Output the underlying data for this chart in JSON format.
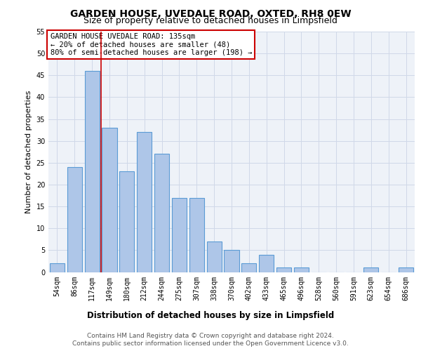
{
  "title": "GARDEN HOUSE, UVEDALE ROAD, OXTED, RH8 0EW",
  "subtitle": "Size of property relative to detached houses in Limpsfield",
  "xlabel": "Distribution of detached houses by size in Limpsfield",
  "ylabel": "Number of detached properties",
  "categories": [
    "54sqm",
    "86sqm",
    "117sqm",
    "149sqm",
    "180sqm",
    "212sqm",
    "244sqm",
    "275sqm",
    "307sqm",
    "338sqm",
    "370sqm",
    "402sqm",
    "433sqm",
    "465sqm",
    "496sqm",
    "528sqm",
    "560sqm",
    "591sqm",
    "623sqm",
    "654sqm",
    "686sqm"
  ],
  "values": [
    2,
    24,
    46,
    33,
    23,
    32,
    27,
    17,
    17,
    7,
    5,
    2,
    4,
    1,
    1,
    0,
    0,
    0,
    1,
    0,
    1
  ],
  "bar_color": "#aec6e8",
  "bar_edge_color": "#5b9bd5",
  "vline_index": 2,
  "annotation_line1": "GARDEN HOUSE UVEDALE ROAD: 135sqm",
  "annotation_line2": "← 20% of detached houses are smaller (48)",
  "annotation_line3": "80% of semi-detached houses are larger (198) →",
  "annotation_box_color": "#ffffff",
  "annotation_box_edge_color": "#cc0000",
  "vline_color": "#cc0000",
  "ylim": [
    0,
    55
  ],
  "yticks": [
    0,
    5,
    10,
    15,
    20,
    25,
    30,
    35,
    40,
    45,
    50,
    55
  ],
  "grid_color": "#d0d8e8",
  "background_color": "#eef2f8",
  "footer_line1": "Contains HM Land Registry data © Crown copyright and database right 2024.",
  "footer_line2": "Contains public sector information licensed under the Open Government Licence v3.0.",
  "title_fontsize": 10,
  "subtitle_fontsize": 9,
  "xlabel_fontsize": 8.5,
  "ylabel_fontsize": 8,
  "tick_fontsize": 7,
  "annotation_fontsize": 7.5,
  "footer_fontsize": 6.5
}
